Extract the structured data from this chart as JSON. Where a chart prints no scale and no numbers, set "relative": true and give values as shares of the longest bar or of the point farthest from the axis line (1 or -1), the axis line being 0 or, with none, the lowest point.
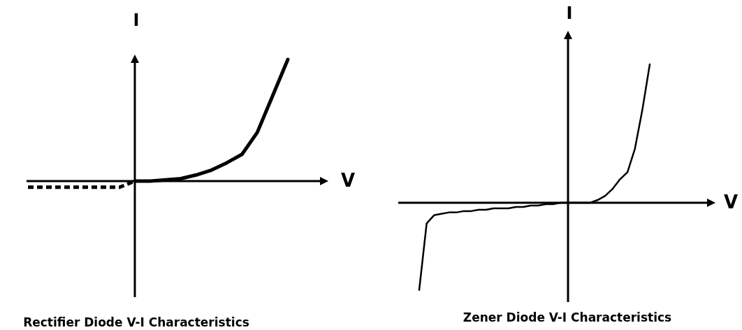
{
  "chart_data": [
    {
      "type": "line",
      "title": "Rectifier Diode V-I Characteristics",
      "xlabel": "V",
      "ylabel": "I",
      "relative": true,
      "categories": [
        null,
        null,
        null,
        null,
        null,
        null,
        null,
        null,
        null,
        null,
        null,
        null,
        null,
        null,
        null,
        null,
        null,
        null
      ],
      "series": [
        {
          "color": "#000000",
          "line_style": "dashed",
          "values": [
            -0.05,
            -0.05,
            -0.05,
            -0.05,
            -0.05,
            -0.05,
            -0.05,
            0,
            null,
            null,
            null,
            null,
            null,
            null,
            null,
            null,
            null,
            null
          ]
        },
        {
          "color": "#000000",
          "line_style": "solid",
          "values": [
            null,
            null,
            null,
            null,
            null,
            null,
            null,
            0,
            0,
            0.01,
            0.02,
            0.05,
            0.09,
            0.15,
            0.22,
            0.4,
            0.7,
            1
          ]
        }
      ]
    },
    {
      "type": "line",
      "title": "Zener Diode V-I Characteristics",
      "xlabel": "V",
      "ylabel": "I",
      "relative": true,
      "categories": [
        null,
        null,
        null,
        null,
        null,
        null,
        null,
        null,
        null,
        null,
        null,
        null,
        null,
        null,
        null,
        null,
        null,
        null,
        null,
        null,
        null,
        null,
        null,
        null,
        null,
        null,
        null,
        null,
        null,
        null,
        null,
        null
      ],
      "series": [
        {
          "color": "#000000",
          "line_style": "solid",
          "values": [
            -0.63,
            -0.15,
            -0.09,
            -0.08,
            -0.07,
            -0.07,
            -0.06,
            -0.06,
            -0.05,
            -0.05,
            -0.04,
            -0.04,
            -0.04,
            -0.03,
            -0.03,
            -0.02,
            -0.02,
            -0.01,
            -0.01,
            0,
            0,
            0,
            0,
            0,
            0.02,
            0.05,
            0.1,
            0.17,
            0.22,
            0.39,
            0.67,
            1
          ]
        }
      ]
    }
  ]
}
